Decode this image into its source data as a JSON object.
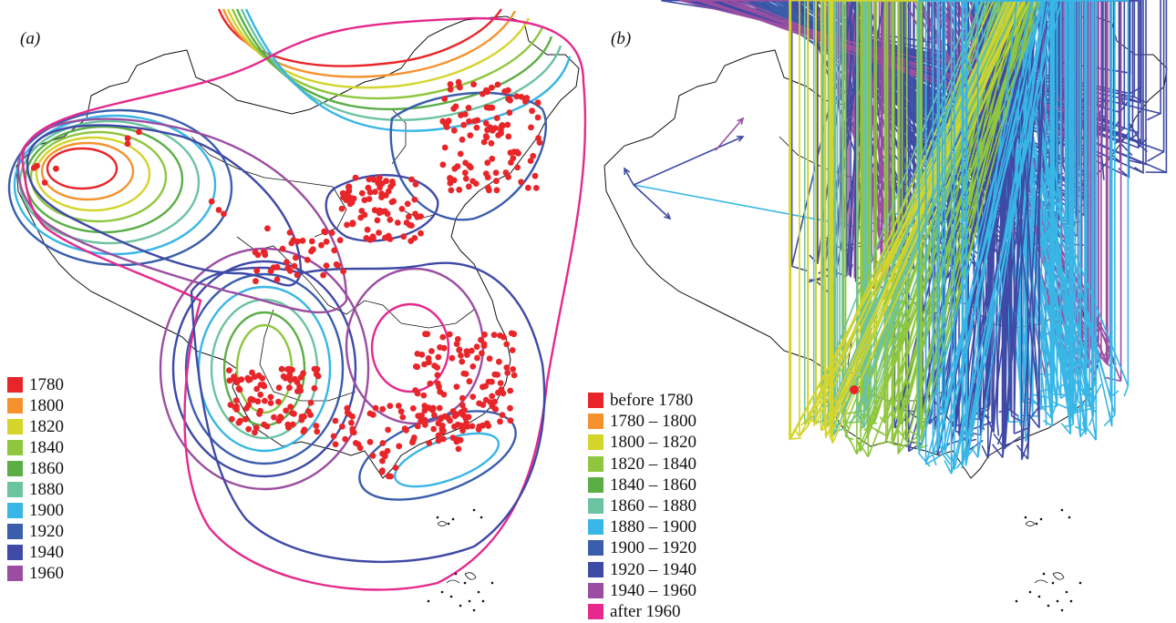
{
  "panel_a": {
    "label": "(a)",
    "legend": [
      {
        "label": "1780",
        "color": "#e8262a"
      },
      {
        "label": "1800",
        "color": "#f6922e"
      },
      {
        "label": "1820",
        "color": "#d4d42a"
      },
      {
        "label": "1840",
        "color": "#8ec63f"
      },
      {
        "label": "1860",
        "color": "#5aae45"
      },
      {
        "label": "1880",
        "color": "#6cc3a0"
      },
      {
        "label": "1900",
        "color": "#38b6e6"
      },
      {
        "label": "1920",
        "color": "#3a5dac"
      },
      {
        "label": "1940",
        "color": "#3f4aa6"
      },
      {
        "label": "1960",
        "color": "#9b4ea1"
      }
    ]
  },
  "panel_b": {
    "label": "(b)",
    "legend": [
      {
        "label": "before 1780",
        "color": "#e8262a"
      },
      {
        "label": "1780 – 1800",
        "color": "#f6922e"
      },
      {
        "label": "1800 – 1820",
        "color": "#d4d42a"
      },
      {
        "label": "1820 – 1840",
        "color": "#8ec63f"
      },
      {
        "label": "1840 – 1860",
        "color": "#5aae45"
      },
      {
        "label": "1860 – 1880",
        "color": "#6cc3a0"
      },
      {
        "label": "1880 – 1900",
        "color": "#38b6e6"
      },
      {
        "label": "1900 – 1920",
        "color": "#3a5dac"
      },
      {
        "label": "1920 – 1940",
        "color": "#3f4aa6"
      },
      {
        "label": "1940 – 1960",
        "color": "#9b4ea1"
      },
      {
        "label": "after 1960",
        "color": "#e6298c"
      }
    ]
  },
  "colors": {
    "points": "#e8262a",
    "border": "#111111",
    "background": "#ffffff"
  }
}
